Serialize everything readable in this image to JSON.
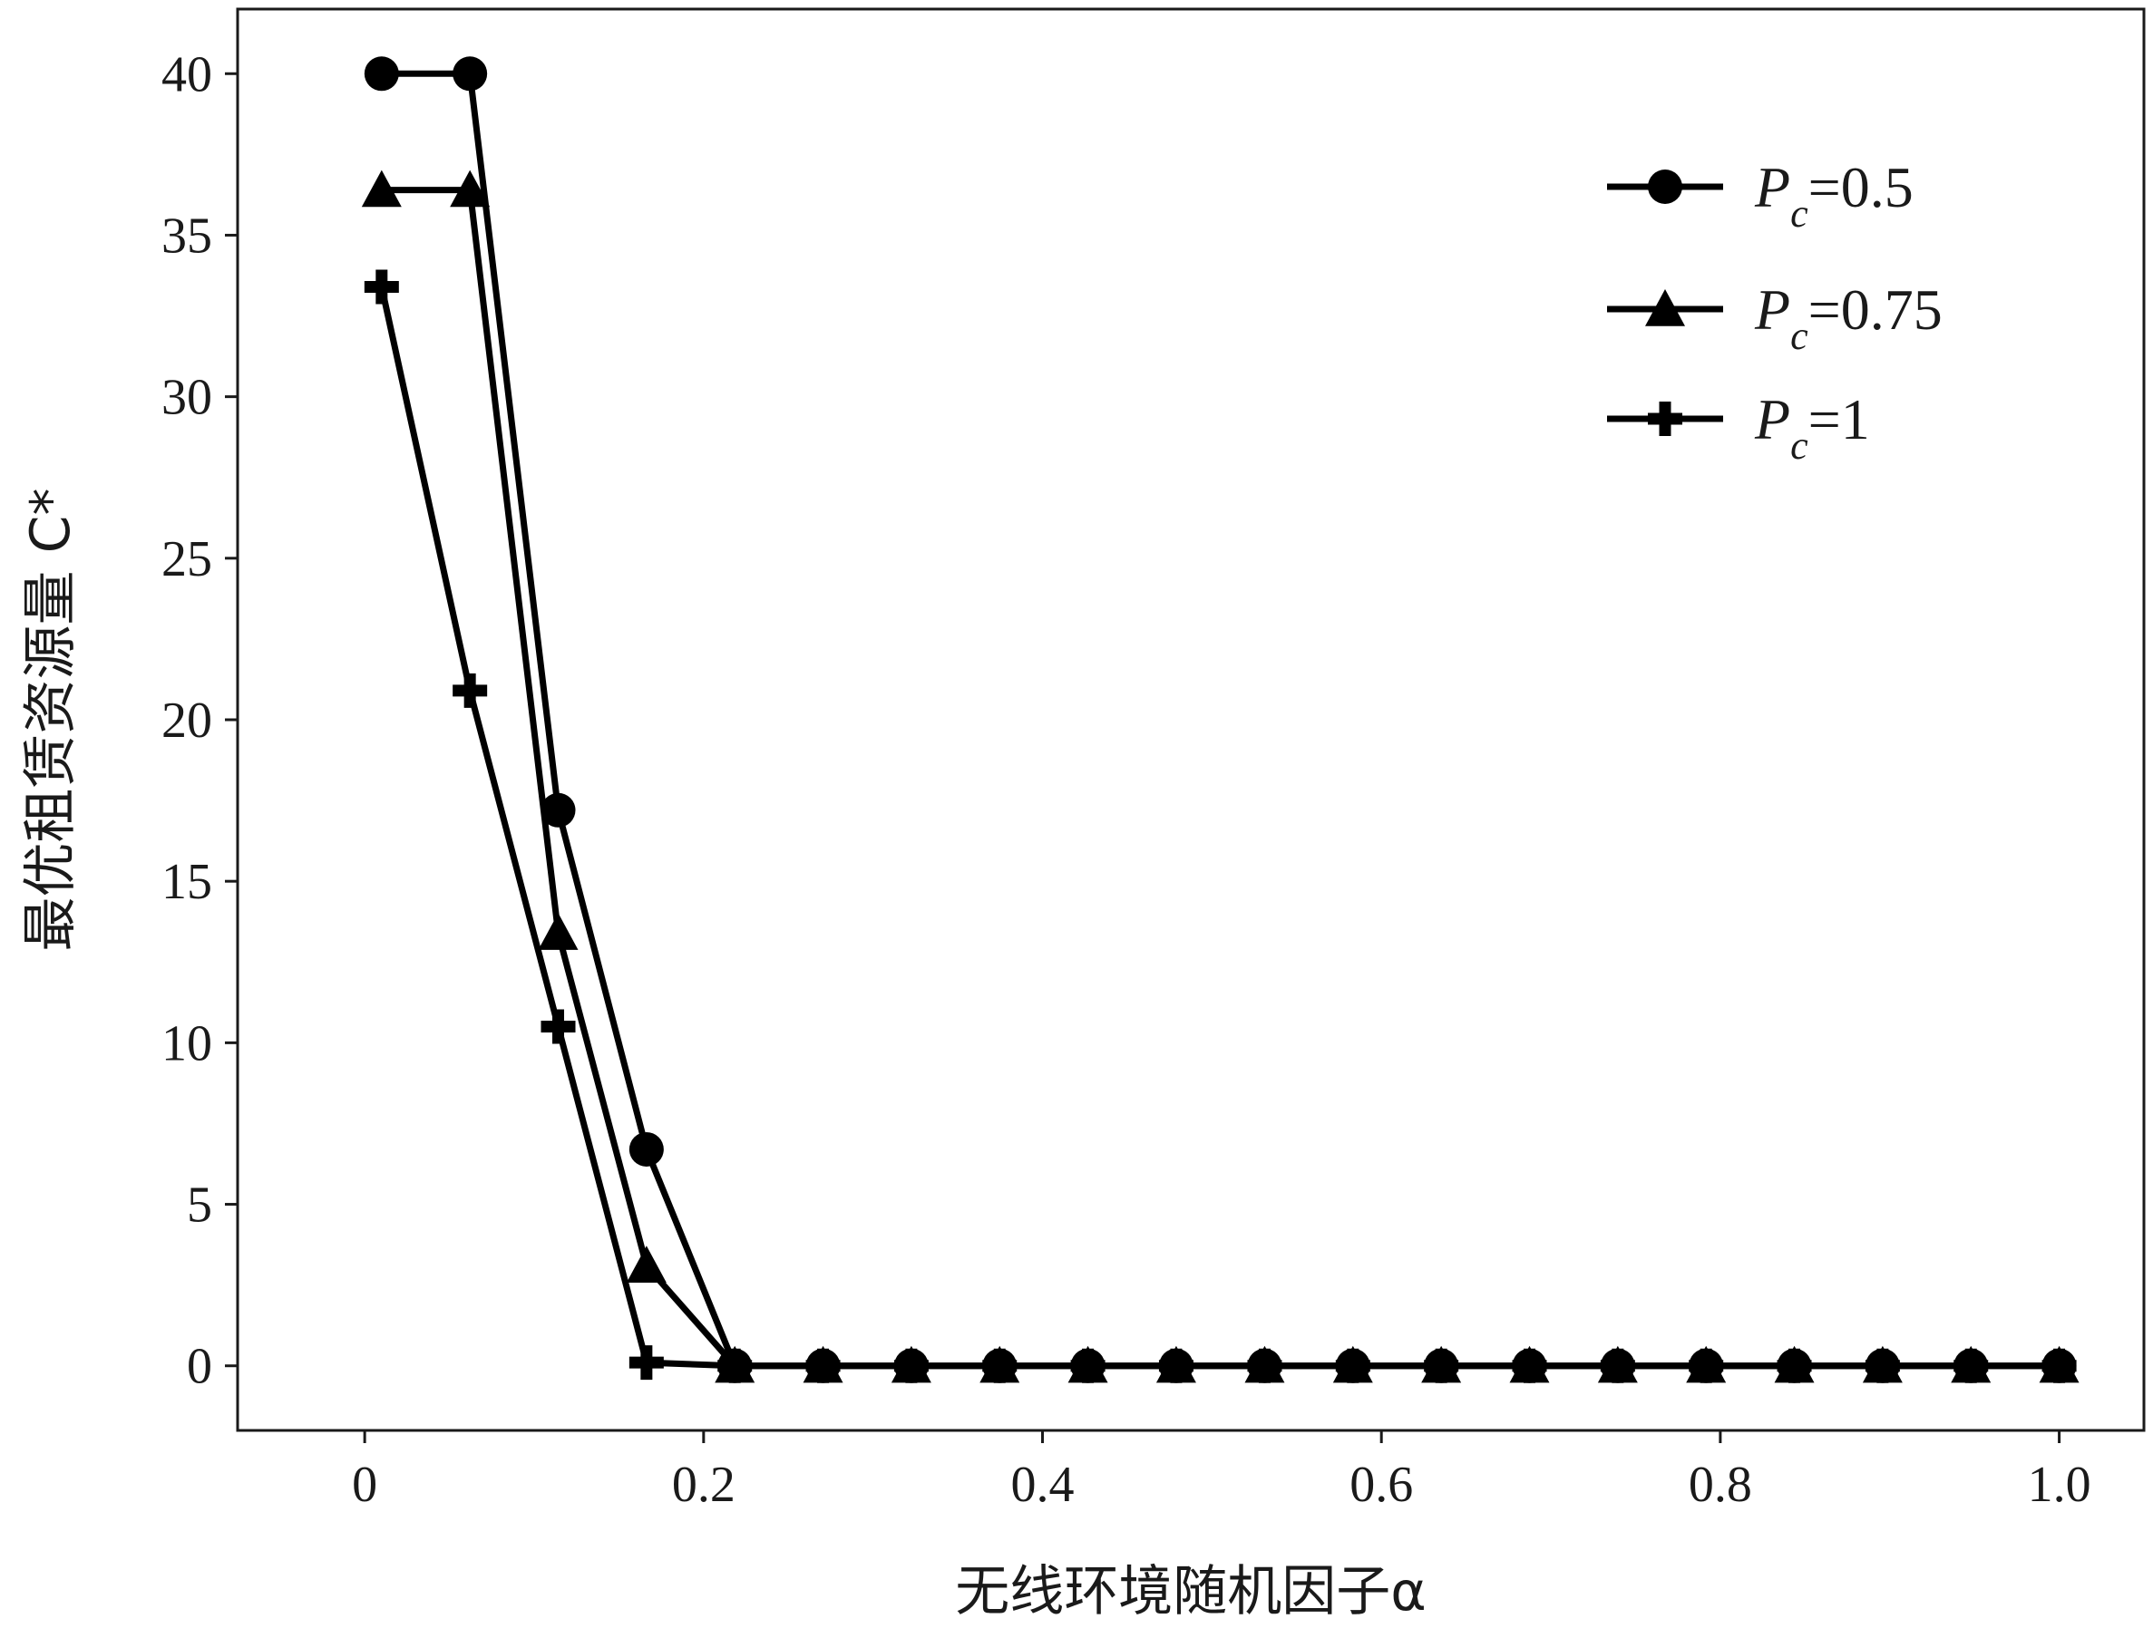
{
  "chart_data": {
    "type": "line",
    "xlabel": "无线环境随机因子α",
    "ylabel": "最优租赁资源量 C*",
    "xlim": [
      -0.075,
      1.05
    ],
    "ylim": [
      -2,
      42
    ],
    "x_ticks": [
      0,
      0.2,
      0.4,
      0.6,
      0.8,
      1.0
    ],
    "x_tick_labels": [
      "0",
      "0.2",
      "0.4",
      "0.6",
      "0.8",
      "1.0"
    ],
    "y_ticks": [
      0,
      5,
      10,
      15,
      20,
      25,
      30,
      35,
      40
    ],
    "y_tick_labels": [
      "0",
      "5",
      "10",
      "15",
      "20",
      "25",
      "30",
      "35",
      "40"
    ],
    "grid": false,
    "legend_position": "top-right",
    "x": [
      0.01,
      0.0621,
      0.1142,
      0.1663,
      0.2184,
      0.2705,
      0.3226,
      0.3747,
      0.4268,
      0.4789,
      0.5311,
      0.5832,
      0.6353,
      0.6874,
      0.7395,
      0.7916,
      0.8437,
      0.8958,
      0.9479,
      1.0
    ],
    "series": [
      {
        "name": "Pc=0.5",
        "legend_main": "P",
        "legend_sub": "c",
        "legend_value": "=0.5",
        "marker": "circle",
        "color": "#000000",
        "values": [
          40,
          40,
          17.2,
          6.7,
          0,
          0,
          0,
          0,
          0,
          0,
          0,
          0,
          0,
          0,
          0,
          0,
          0,
          0,
          0,
          0
        ]
      },
      {
        "name": "Pc=0.75",
        "legend_main": "P",
        "legend_sub": "c",
        "legend_value": "=0.75",
        "marker": "triangle",
        "color": "#000000",
        "values": [
          36.4,
          36.4,
          13.4,
          3.1,
          0,
          0,
          0,
          0,
          0,
          0,
          0,
          0,
          0,
          0,
          0,
          0,
          0,
          0,
          0,
          0
        ]
      },
      {
        "name": "Pc=1",
        "legend_main": "P",
        "legend_sub": "c",
        "legend_value": "=1",
        "marker": "plus",
        "color": "#000000",
        "values": [
          33.4,
          20.9,
          10.5,
          0.1,
          0,
          0,
          0,
          0,
          0,
          0,
          0,
          0,
          0,
          0,
          0,
          0,
          0,
          0,
          0,
          0
        ]
      }
    ]
  }
}
